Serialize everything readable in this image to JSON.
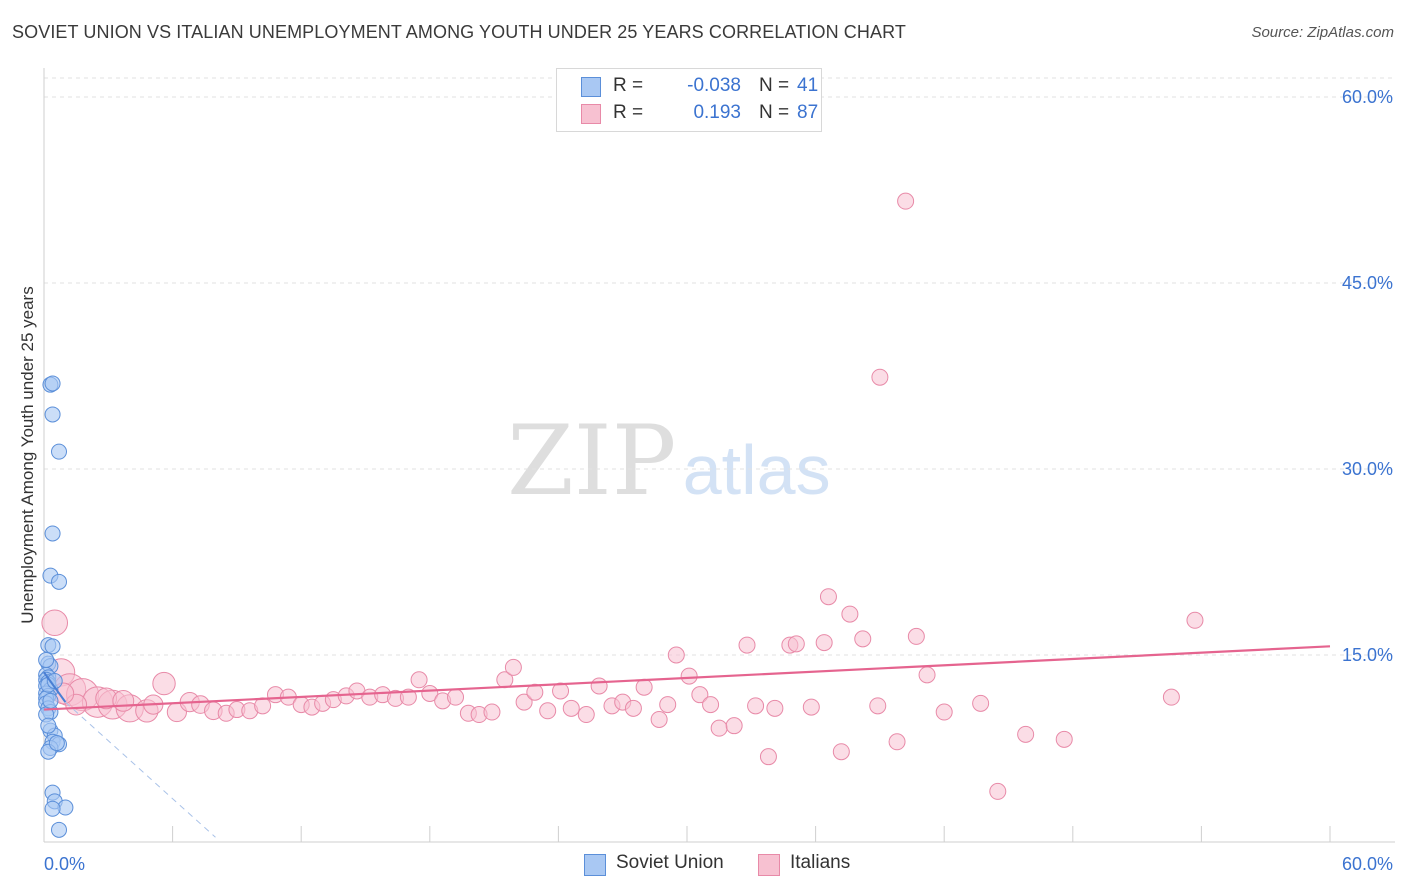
{
  "chart_data": {
    "type": "scatter",
    "title": "SOVIET UNION VS ITALIAN UNEMPLOYMENT AMONG YOUTH UNDER 25 YEARS CORRELATION CHART",
    "source": "Source: ZipAtlas.com",
    "ylabel": "Unemployment Among Youth under 25 years",
    "xlabel": "",
    "xlim": [
      0,
      60
    ],
    "ylim": [
      0,
      60
    ],
    "x_tick_labels": {
      "min": "0.0%",
      "max": "60.0%"
    },
    "y_ticks": [
      15,
      30,
      45,
      60
    ],
    "y_tick_labels": [
      "15.0%",
      "30.0%",
      "45.0%",
      "60.0%"
    ],
    "grid": true,
    "watermark": "ZIPatlas",
    "legend": {
      "r_label": "R =",
      "n_label": "N =",
      "rows": [
        {
          "name": "Soviet Union",
          "r": "-0.038",
          "n": "41"
        },
        {
          "name": "Italians",
          "r": "0.193",
          "n": "87"
        }
      ]
    },
    "colors": {
      "soviet_fill": "#a9c8f3",
      "soviet_stroke": "#5b8fd9",
      "soviet_trend": "#4a7fd4",
      "italian_fill": "#f7c1d1",
      "italian_stroke": "#e88aa8",
      "italian_trend": "#e5648f",
      "axis_text": "#3b73d0"
    },
    "series": [
      {
        "name": "Soviet Union",
        "points": [
          {
            "x": 0.3,
            "y": 36.8,
            "s": 1
          },
          {
            "x": 0.4,
            "y": 36.9,
            "s": 1
          },
          {
            "x": 0.4,
            "y": 34.4,
            "s": 1
          },
          {
            "x": 0.7,
            "y": 31.4,
            "s": 1
          },
          {
            "x": 0.4,
            "y": 24.8,
            "s": 1
          },
          {
            "x": 0.3,
            "y": 21.4,
            "s": 1
          },
          {
            "x": 0.7,
            "y": 20.9,
            "s": 1
          },
          {
            "x": 0.2,
            "y": 15.8,
            "s": 1
          },
          {
            "x": 0.4,
            "y": 15.7,
            "s": 1
          },
          {
            "x": 0.2,
            "y": 14.3,
            "s": 1
          },
          {
            "x": 0.3,
            "y": 14.1,
            "s": 1
          },
          {
            "x": 0.1,
            "y": 13.4,
            "s": 1
          },
          {
            "x": 0.2,
            "y": 13.2,
            "s": 1
          },
          {
            "x": 0.1,
            "y": 13.0,
            "s": 1
          },
          {
            "x": 0.2,
            "y": 12.8,
            "s": 1
          },
          {
            "x": 0.1,
            "y": 12.5,
            "s": 1
          },
          {
            "x": 0.3,
            "y": 12.2,
            "s": 1
          },
          {
            "x": 0.1,
            "y": 11.9,
            "s": 1
          },
          {
            "x": 0.2,
            "y": 11.7,
            "s": 1
          },
          {
            "x": 0.1,
            "y": 11.5,
            "s": 1
          },
          {
            "x": 0.1,
            "y": 11.1,
            "s": 1
          },
          {
            "x": 0.2,
            "y": 10.7,
            "s": 1
          },
          {
            "x": 0.3,
            "y": 10.4,
            "s": 1
          },
          {
            "x": 0.1,
            "y": 10.2,
            "s": 1
          },
          {
            "x": 0.3,
            "y": 8.9,
            "s": 1
          },
          {
            "x": 0.5,
            "y": 8.5,
            "s": 1
          },
          {
            "x": 0.4,
            "y": 8.0,
            "s": 1
          },
          {
            "x": 0.7,
            "y": 7.8,
            "s": 1
          },
          {
            "x": 0.3,
            "y": 7.5,
            "s": 1
          },
          {
            "x": 0.2,
            "y": 7.2,
            "s": 1
          },
          {
            "x": 0.4,
            "y": 3.9,
            "s": 1
          },
          {
            "x": 0.5,
            "y": 3.2,
            "s": 1
          },
          {
            "x": 1.0,
            "y": 2.7,
            "s": 1
          },
          {
            "x": 0.4,
            "y": 2.6,
            "s": 1
          },
          {
            "x": 0.7,
            "y": 0.9,
            "s": 1
          },
          {
            "x": 0.2,
            "y": 12.6,
            "s": 1
          },
          {
            "x": 0.3,
            "y": 11.3,
            "s": 1
          },
          {
            "x": 0.2,
            "y": 9.3,
            "s": 1
          },
          {
            "x": 0.6,
            "y": 7.9,
            "s": 1
          },
          {
            "x": 0.1,
            "y": 14.6,
            "s": 1
          },
          {
            "x": 0.5,
            "y": 12.9,
            "s": 1
          }
        ]
      },
      {
        "name": "Italians",
        "points": [
          {
            "x": 0.5,
            "y": 17.6,
            "s": 1.6
          },
          {
            "x": 0.8,
            "y": 13.6,
            "s": 1.7
          },
          {
            "x": 1.2,
            "y": 12.2,
            "s": 2.0
          },
          {
            "x": 1.8,
            "y": 11.8,
            "s": 2.0
          },
          {
            "x": 2.5,
            "y": 11.2,
            "s": 1.9
          },
          {
            "x": 3.2,
            "y": 11.0,
            "s": 1.8
          },
          {
            "x": 4.0,
            "y": 10.7,
            "s": 1.7
          },
          {
            "x": 4.8,
            "y": 10.5,
            "s": 1.4
          },
          {
            "x": 5.6,
            "y": 12.7,
            "s": 1.4
          },
          {
            "x": 6.2,
            "y": 10.4,
            "s": 1.2
          },
          {
            "x": 6.8,
            "y": 11.2,
            "s": 1.2
          },
          {
            "x": 7.3,
            "y": 11.0,
            "s": 1.1
          },
          {
            "x": 7.9,
            "y": 10.5,
            "s": 1.1
          },
          {
            "x": 8.5,
            "y": 10.3,
            "s": 1.0
          },
          {
            "x": 9.0,
            "y": 10.6,
            "s": 1.0
          },
          {
            "x": 9.6,
            "y": 10.5,
            "s": 1.0
          },
          {
            "x": 10.2,
            "y": 10.9,
            "s": 1.0
          },
          {
            "x": 10.8,
            "y": 11.8,
            "s": 1.0
          },
          {
            "x": 11.4,
            "y": 11.6,
            "s": 1.0
          },
          {
            "x": 12.0,
            "y": 11.0,
            "s": 1.0
          },
          {
            "x": 12.5,
            "y": 10.8,
            "s": 1.0
          },
          {
            "x": 13.0,
            "y": 11.1,
            "s": 1.0
          },
          {
            "x": 13.5,
            "y": 11.4,
            "s": 1.0
          },
          {
            "x": 14.1,
            "y": 11.7,
            "s": 1.0
          },
          {
            "x": 14.6,
            "y": 12.1,
            "s": 1.0
          },
          {
            "x": 15.2,
            "y": 11.6,
            "s": 1.0
          },
          {
            "x": 15.8,
            "y": 11.8,
            "s": 1.0
          },
          {
            "x": 16.4,
            "y": 11.5,
            "s": 1.0
          },
          {
            "x": 17.0,
            "y": 11.6,
            "s": 1.0
          },
          {
            "x": 17.5,
            "y": 13.0,
            "s": 1.0
          },
          {
            "x": 18.0,
            "y": 11.9,
            "s": 1.0
          },
          {
            "x": 18.6,
            "y": 11.3,
            "s": 1.0
          },
          {
            "x": 19.2,
            "y": 11.6,
            "s": 1.0
          },
          {
            "x": 19.8,
            "y": 10.3,
            "s": 1.0
          },
          {
            "x": 20.3,
            "y": 10.2,
            "s": 1.0
          },
          {
            "x": 20.9,
            "y": 10.4,
            "s": 1.0
          },
          {
            "x": 21.5,
            "y": 13.0,
            "s": 1.0
          },
          {
            "x": 21.9,
            "y": 14.0,
            "s": 1.0
          },
          {
            "x": 22.4,
            "y": 11.2,
            "s": 1.0
          },
          {
            "x": 22.9,
            "y": 12.0,
            "s": 1.0
          },
          {
            "x": 23.5,
            "y": 10.5,
            "s": 1.0
          },
          {
            "x": 24.1,
            "y": 12.1,
            "s": 1.0
          },
          {
            "x": 24.6,
            "y": 10.7,
            "s": 1.0
          },
          {
            "x": 25.3,
            "y": 10.2,
            "s": 1.0
          },
          {
            "x": 25.9,
            "y": 12.5,
            "s": 1.0
          },
          {
            "x": 26.5,
            "y": 10.9,
            "s": 1.0
          },
          {
            "x": 27.0,
            "y": 11.2,
            "s": 1.0
          },
          {
            "x": 27.5,
            "y": 10.7,
            "s": 1.0
          },
          {
            "x": 28.0,
            "y": 12.4,
            "s": 1.0
          },
          {
            "x": 28.7,
            "y": 9.8,
            "s": 1.0
          },
          {
            "x": 29.1,
            "y": 11.0,
            "s": 1.0
          },
          {
            "x": 29.5,
            "y": 15.0,
            "s": 1.0
          },
          {
            "x": 30.1,
            "y": 13.3,
            "s": 1.0
          },
          {
            "x": 30.6,
            "y": 11.8,
            "s": 1.0
          },
          {
            "x": 31.1,
            "y": 11.0,
            "s": 1.0
          },
          {
            "x": 31.5,
            "y": 9.1,
            "s": 1.0
          },
          {
            "x": 32.2,
            "y": 9.3,
            "s": 1.0
          },
          {
            "x": 32.8,
            "y": 15.8,
            "s": 1.0
          },
          {
            "x": 33.2,
            "y": 10.9,
            "s": 1.0
          },
          {
            "x": 33.8,
            "y": 6.8,
            "s": 1.0
          },
          {
            "x": 34.1,
            "y": 10.7,
            "s": 1.0
          },
          {
            "x": 34.8,
            "y": 15.8,
            "s": 1.0
          },
          {
            "x": 35.1,
            "y": 15.9,
            "s": 1.0
          },
          {
            "x": 35.8,
            "y": 10.8,
            "s": 1.0
          },
          {
            "x": 36.4,
            "y": 16.0,
            "s": 1.0
          },
          {
            "x": 36.6,
            "y": 19.7,
            "s": 1.0
          },
          {
            "x": 37.2,
            "y": 7.2,
            "s": 1.0
          },
          {
            "x": 37.6,
            "y": 18.3,
            "s": 1.0
          },
          {
            "x": 38.2,
            "y": 16.3,
            "s": 1.0
          },
          {
            "x": 38.9,
            "y": 10.9,
            "s": 1.0
          },
          {
            "x": 39.0,
            "y": 37.4,
            "s": 1.0
          },
          {
            "x": 39.8,
            "y": 8.0,
            "s": 1.0
          },
          {
            "x": 40.2,
            "y": 51.6,
            "s": 1.0
          },
          {
            "x": 40.7,
            "y": 16.5,
            "s": 1.0
          },
          {
            "x": 41.2,
            "y": 13.4,
            "s": 1.0
          },
          {
            "x": 42.0,
            "y": 10.4,
            "s": 1.0
          },
          {
            "x": 43.7,
            "y": 11.1,
            "s": 1.0
          },
          {
            "x": 44.5,
            "y": 4.0,
            "s": 1.0
          },
          {
            "x": 45.8,
            "y": 8.6,
            "s": 1.0
          },
          {
            "x": 47.6,
            "y": 8.2,
            "s": 1.0
          },
          {
            "x": 52.6,
            "y": 11.6,
            "s": 1.0
          },
          {
            "x": 53.7,
            "y": 17.8,
            "s": 1.0
          },
          {
            "x": 2.9,
            "y": 11.5,
            "s": 1.3
          },
          {
            "x": 1.5,
            "y": 11.0,
            "s": 1.3
          },
          {
            "x": 3.7,
            "y": 11.3,
            "s": 1.3
          },
          {
            "x": 5.1,
            "y": 11.0,
            "s": 1.2
          },
          {
            "x": 0.9,
            "y": 11.9,
            "s": 1.3
          }
        ]
      }
    ],
    "trend_lines": [
      {
        "name": "Soviet Union",
        "x": [
          0,
          1.0
        ],
        "y": [
          13.6,
          11.2
        ],
        "dashed_x": [
          1.0,
          8.0
        ],
        "dashed_y": [
          11.2,
          0.3
        ]
      },
      {
        "name": "Italians",
        "x": [
          0,
          60
        ],
        "y": [
          10.6,
          15.7
        ]
      }
    ]
  }
}
